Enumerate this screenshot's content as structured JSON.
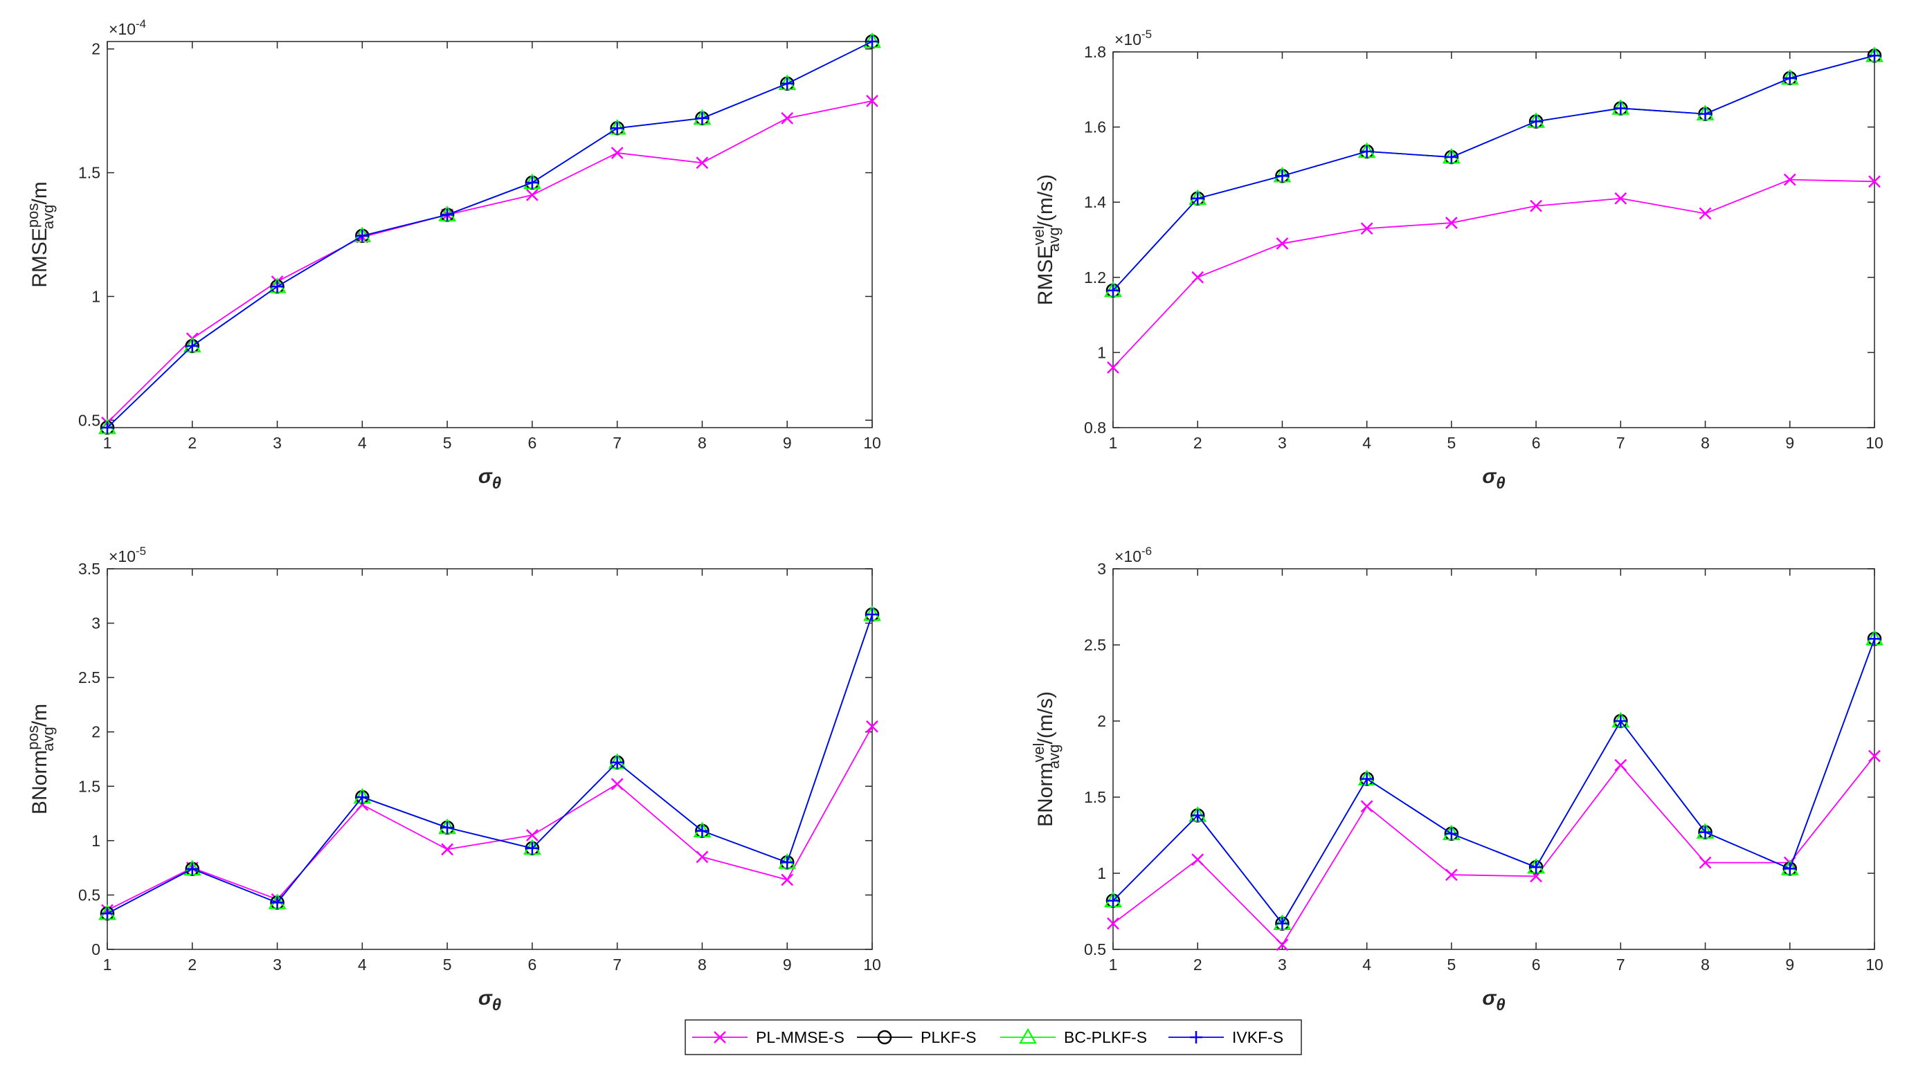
{
  "legend": [
    "PL-MMSE-S",
    "PLKF-S",
    "BC-PLKF-S",
    "IVKF-S"
  ],
  "colors": {
    "PL-MMSE-S": "#ff00ff",
    "PLKF-S": "#000000",
    "BC-PLKF-S": "#00ff00",
    "IVKF-S": "#0000ff"
  },
  "markers": {
    "PL-MMSE-S": "x",
    "PLKF-S": "circle",
    "BC-PLKF-S": "triangle",
    "IVKF-S": "plus"
  },
  "chart_data": [
    {
      "type": "line",
      "id": "rmse-pos",
      "ylabel": {
        "main": "RMSE",
        "sup": "pos",
        "sub": "avg",
        "unit": "/m"
      },
      "xlabel_symbol": "σ",
      "xlabel_sub": "θ",
      "exponent": {
        "base": "×10",
        "power": "-4"
      },
      "x": [
        1,
        2,
        3,
        4,
        5,
        6,
        7,
        8,
        9,
        10
      ],
      "xlim": [
        1,
        10
      ],
      "ylim": [
        0.47,
        2.03
      ],
      "yticks": [
        0.5,
        1,
        1.5,
        2
      ],
      "ytick_labels": [
        "0.5",
        "1",
        "1.5",
        "2"
      ],
      "series": [
        {
          "name": "PL-MMSE-S",
          "values": [
            0.49,
            0.83,
            1.06,
            1.24,
            1.33,
            1.41,
            1.58,
            1.54,
            1.72,
            1.79
          ]
        },
        {
          "name": "PLKF-S",
          "values": [
            0.47,
            0.8,
            1.04,
            1.245,
            1.33,
            1.46,
            1.68,
            1.72,
            1.86,
            2.03
          ]
        },
        {
          "name": "BC-PLKF-S",
          "values": [
            0.47,
            0.8,
            1.04,
            1.245,
            1.33,
            1.46,
            1.68,
            1.72,
            1.86,
            2.03
          ]
        },
        {
          "name": "IVKF-S",
          "values": [
            0.47,
            0.8,
            1.04,
            1.245,
            1.33,
            1.46,
            1.68,
            1.72,
            1.86,
            2.03
          ]
        }
      ]
    },
    {
      "type": "line",
      "id": "rmse-vel",
      "ylabel": {
        "main": "RMSE",
        "sup": "vel",
        "sub": "avg",
        "unit": "/(m/s)"
      },
      "xlabel_symbol": "σ",
      "xlabel_sub": "θ",
      "exponent": {
        "base": "×10",
        "power": "-5"
      },
      "x": [
        1,
        2,
        3,
        4,
        5,
        6,
        7,
        8,
        9,
        10
      ],
      "xlim": [
        1,
        10
      ],
      "ylim": [
        0.8,
        1.8
      ],
      "yticks": [
        0.8,
        1,
        1.2,
        1.4,
        1.6,
        1.8
      ],
      "ytick_labels": [
        "0.8",
        "1",
        "1.2",
        "1.4",
        "1.6",
        "1.8"
      ],
      "series": [
        {
          "name": "PL-MMSE-S",
          "values": [
            0.96,
            1.2,
            1.29,
            1.33,
            1.345,
            1.39,
            1.41,
            1.37,
            1.46,
            1.455
          ]
        },
        {
          "name": "PLKF-S",
          "values": [
            1.165,
            1.41,
            1.47,
            1.535,
            1.52,
            1.615,
            1.65,
            1.635,
            1.73,
            1.79
          ]
        },
        {
          "name": "BC-PLKF-S",
          "values": [
            1.165,
            1.41,
            1.47,
            1.535,
            1.52,
            1.615,
            1.65,
            1.635,
            1.73,
            1.79
          ]
        },
        {
          "name": "IVKF-S",
          "values": [
            1.165,
            1.41,
            1.47,
            1.535,
            1.52,
            1.615,
            1.65,
            1.635,
            1.73,
            1.79
          ]
        }
      ]
    },
    {
      "type": "line",
      "id": "bnorm-pos",
      "ylabel": {
        "main": "BNorm",
        "sup": "pos",
        "sub": "avg",
        "unit": "/m"
      },
      "xlabel_symbol": "σ",
      "xlabel_sub": "θ",
      "exponent": {
        "base": "×10",
        "power": "-5"
      },
      "x": [
        1,
        2,
        3,
        4,
        5,
        6,
        7,
        8,
        9,
        10
      ],
      "xlim": [
        1,
        10
      ],
      "ylim": [
        0,
        3.5
      ],
      "yticks": [
        0,
        0.5,
        1,
        1.5,
        2,
        2.5,
        3,
        3.5
      ],
      "ytick_labels": [
        "0",
        "0.5",
        "1",
        "1.5",
        "2",
        "2.5",
        "3",
        "3.5"
      ],
      "series": [
        {
          "name": "PL-MMSE-S",
          "values": [
            0.36,
            0.75,
            0.46,
            1.33,
            0.92,
            1.05,
            1.52,
            0.85,
            0.64,
            2.05
          ]
        },
        {
          "name": "PLKF-S",
          "values": [
            0.33,
            0.74,
            0.43,
            1.4,
            1.12,
            0.93,
            1.72,
            1.09,
            0.8,
            3.08
          ]
        },
        {
          "name": "BC-PLKF-S",
          "values": [
            0.33,
            0.74,
            0.43,
            1.4,
            1.12,
            0.93,
            1.72,
            1.09,
            0.8,
            3.08
          ]
        },
        {
          "name": "IVKF-S",
          "values": [
            0.33,
            0.74,
            0.43,
            1.4,
            1.12,
            0.93,
            1.72,
            1.09,
            0.8,
            3.08
          ]
        }
      ]
    },
    {
      "type": "line",
      "id": "bnorm-vel",
      "ylabel": {
        "main": "BNorm",
        "sup": "vel",
        "sub": "avg",
        "unit": "/(m/s)"
      },
      "xlabel_symbol": "σ",
      "xlabel_sub": "θ",
      "exponent": {
        "base": "×10",
        "power": "-6"
      },
      "x": [
        1,
        2,
        3,
        4,
        5,
        6,
        7,
        8,
        9,
        10
      ],
      "xlim": [
        1,
        10
      ],
      "ylim": [
        0.5,
        3
      ],
      "yticks": [
        0.5,
        1,
        1.5,
        2,
        2.5,
        3
      ],
      "ytick_labels": [
        "0.5",
        "1",
        "1.5",
        "2",
        "2.5",
        "3"
      ],
      "series": [
        {
          "name": "PL-MMSE-S",
          "values": [
            0.67,
            1.09,
            0.53,
            1.44,
            0.99,
            0.98,
            1.71,
            1.07,
            1.07,
            1.77
          ]
        },
        {
          "name": "PLKF-S",
          "values": [
            0.82,
            1.38,
            0.67,
            1.62,
            1.26,
            1.04,
            2.0,
            1.27,
            1.03,
            2.54
          ]
        },
        {
          "name": "BC-PLKF-S",
          "values": [
            0.82,
            1.38,
            0.67,
            1.62,
            1.26,
            1.04,
            2.0,
            1.27,
            1.03,
            2.54
          ]
        },
        {
          "name": "IVKF-S",
          "values": [
            0.82,
            1.38,
            0.67,
            1.62,
            1.26,
            1.04,
            2.0,
            1.27,
            1.03,
            2.54
          ]
        }
      ]
    }
  ]
}
